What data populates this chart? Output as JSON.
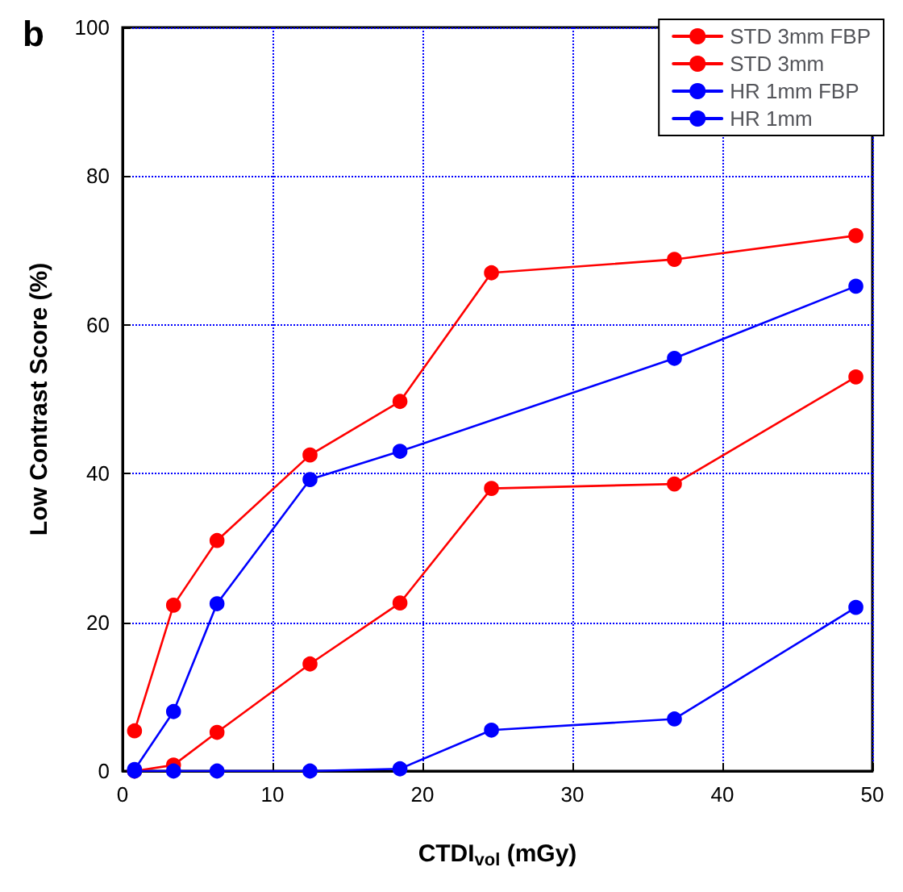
{
  "chart_data": {
    "type": "line",
    "xlabel": "CTDI$_{vol}$ (mGy)",
    "ylabel": "Low Contrast Score (%)",
    "annotations": [
      "b"
    ],
    "x": [
      0.8,
      3.4,
      6.3,
      12.5,
      18.5,
      24.6,
      36.8,
      48.9
    ],
    "series": [
      {
        "name": "STD 3mm FBP",
        "color": "#ff0000",
        "values": [
          0,
          0.8,
          5.2,
          14.4,
          22.6,
          38,
          38.6,
          53
        ]
      },
      {
        "name": "STD 3mm",
        "color": "#ff0000",
        "values": [
          5.4,
          22.3,
          31,
          42.5,
          49.7,
          67,
          68.8,
          72
        ]
      },
      {
        "name": "HR 1mm FBP",
        "color": "#0000ff",
        "values": [
          0,
          0,
          0,
          0,
          0.3,
          5.5,
          7,
          22
        ]
      },
      {
        "name": "HR 1mm",
        "color": "#0000ff",
        "x": [
          0.8,
          3.4,
          6.3,
          12.5,
          18.5,
          36.8,
          48.9
        ],
        "values": [
          0.2,
          8,
          22.5,
          39.2,
          43,
          55.5,
          65.2
        ]
      }
    ],
    "xlim": [
      0,
      50
    ],
    "xticks": [
      0,
      10,
      20,
      30,
      40,
      50
    ],
    "ylim": [
      0,
      100
    ],
    "yticks": [
      0,
      20,
      40,
      60,
      80,
      100
    ],
    "grid": true,
    "legend": "top right",
    "marker": "circle",
    "line_style": "solid"
  }
}
